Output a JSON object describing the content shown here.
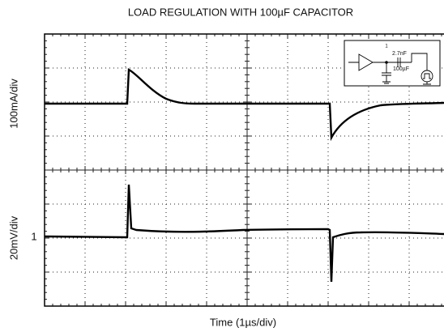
{
  "title": "LOAD REGULATION WITH 100µF CAPACITOR",
  "top_trace_label": "100mA/div",
  "bottom_trace_label": "20mV/div",
  "reference_marker": "1",
  "x_label": "Time (1µs/div)",
  "inset": {
    "node_label": "1",
    "series_capacitor": "2.7nF",
    "load_capacitor": "100µF"
  }
}
